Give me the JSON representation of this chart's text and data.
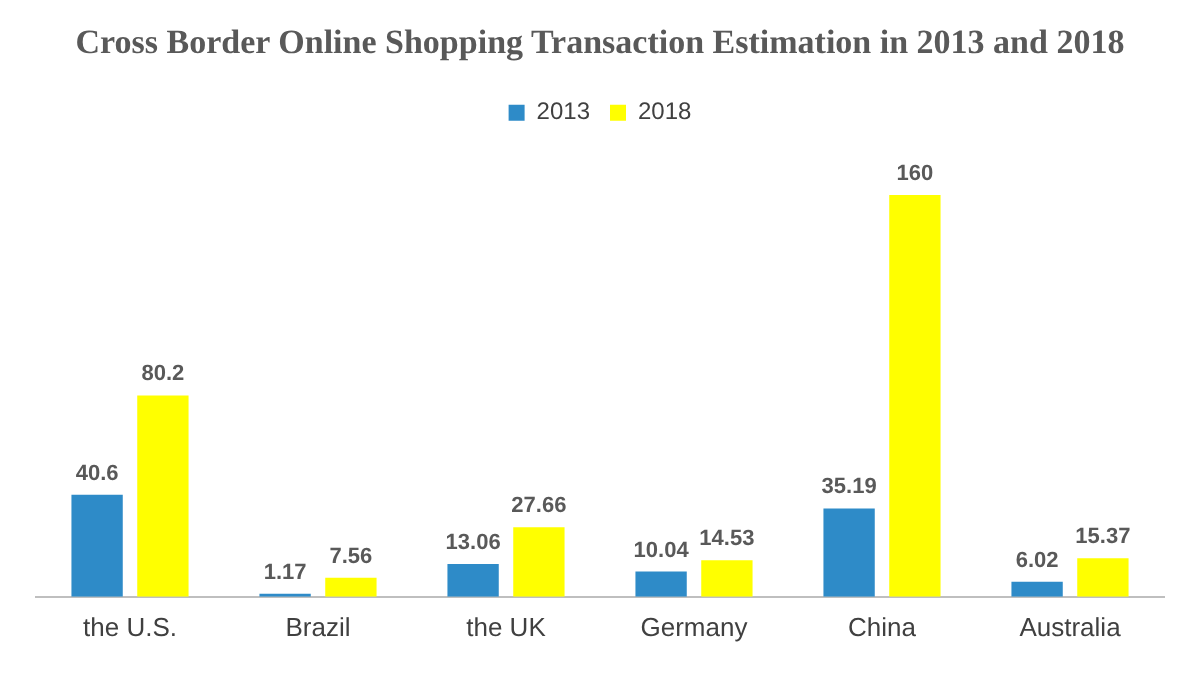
{
  "chart_data": {
    "type": "bar",
    "title": "Cross Border Online Shopping Transaction Estimation in 2013 and 2018",
    "categories": [
      "the U.S.",
      "Brazil",
      "the UK",
      "Germany",
      "China",
      "Australia"
    ],
    "series": [
      {
        "name": "2013",
        "color": "#2e8bc8",
        "values": [
          40.6,
          1.17,
          13.06,
          10.04,
          35.19,
          6.02
        ]
      },
      {
        "name": "2018",
        "color": "#ffff00",
        "values": [
          80.2,
          7.56,
          27.66,
          14.53,
          160,
          15.37
        ]
      }
    ],
    "data_labels": true,
    "legend": "top",
    "grid": false
  }
}
